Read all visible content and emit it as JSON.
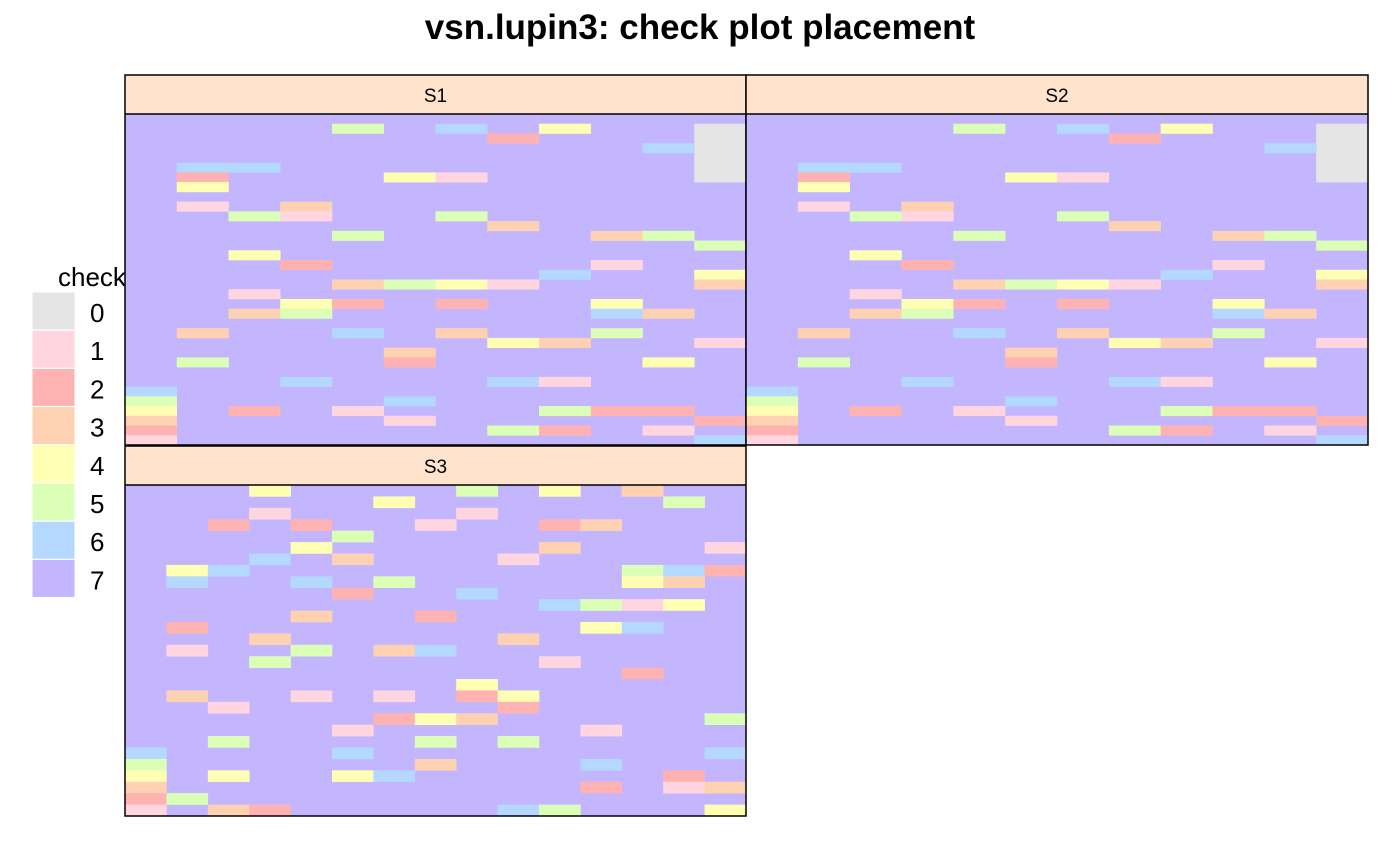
{
  "chart_data": {
    "type": "heatmap",
    "title": "vsn.lupin3: check plot placement",
    "legend": {
      "title": "check",
      "placement": "left",
      "levels": [
        {
          "value": "0",
          "color": "#E5E5E5"
        },
        {
          "value": "1",
          "color": "#FFD6DF"
        },
        {
          "value": "2",
          "color": "#FFB2B2"
        },
        {
          "value": "3",
          "color": "#FFD1B3"
        },
        {
          "value": "4",
          "color": "#FFFFB3"
        },
        {
          "value": "5",
          "color": "#DCFFB8"
        },
        {
          "value": "6",
          "color": "#B4D8FF"
        },
        {
          "value": "7",
          "color": "#C4B5FF"
        }
      ]
    },
    "strip_color": "#FFE3CC",
    "grid_cols": 12,
    "grid_rows": 34,
    "default_value": 7,
    "panels": [
      {
        "name": "S1",
        "cells": [
          [
            11,
            1,
            0
          ],
          [
            11,
            2,
            0
          ],
          [
            11,
            3,
            0
          ],
          [
            11,
            4,
            0
          ],
          [
            11,
            5,
            0
          ],
          [
            11,
            6,
            0
          ],
          [
            4,
            1,
            5
          ],
          [
            6,
            1,
            6
          ],
          [
            8,
            1,
            4
          ],
          [
            7,
            2,
            2
          ],
          [
            10,
            3,
            6
          ],
          [
            1,
            5,
            6
          ],
          [
            2,
            5,
            6
          ],
          [
            1,
            6,
            2
          ],
          [
            5,
            6,
            4
          ],
          [
            6,
            6,
            1
          ],
          [
            1,
            7,
            4
          ],
          [
            1,
            9,
            1
          ],
          [
            3,
            9,
            3
          ],
          [
            2,
            10,
            5
          ],
          [
            3,
            10,
            1
          ],
          [
            6,
            10,
            5
          ],
          [
            7,
            11,
            3
          ],
          [
            4,
            12,
            5
          ],
          [
            9,
            12,
            3
          ],
          [
            10,
            12,
            5
          ],
          [
            11,
            13,
            5
          ],
          [
            2,
            14,
            4
          ],
          [
            3,
            15,
            2
          ],
          [
            9,
            15,
            1
          ],
          [
            8,
            16,
            6
          ],
          [
            11,
            16,
            4
          ],
          [
            4,
            17,
            3
          ],
          [
            5,
            17,
            5
          ],
          [
            6,
            17,
            4
          ],
          [
            7,
            17,
            1
          ],
          [
            11,
            17,
            3
          ],
          [
            2,
            18,
            1
          ],
          [
            3,
            19,
            4
          ],
          [
            4,
            19,
            2
          ],
          [
            6,
            19,
            2
          ],
          [
            9,
            19,
            4
          ],
          [
            2,
            20,
            3
          ],
          [
            3,
            20,
            5
          ],
          [
            9,
            20,
            6
          ],
          [
            10,
            20,
            3
          ],
          [
            1,
            22,
            3
          ],
          [
            4,
            22,
            6
          ],
          [
            6,
            22,
            3
          ],
          [
            9,
            22,
            5
          ],
          [
            7,
            23,
            4
          ],
          [
            8,
            23,
            3
          ],
          [
            11,
            23,
            1
          ],
          [
            5,
            24,
            3
          ],
          [
            1,
            25,
            5
          ],
          [
            5,
            25,
            2
          ],
          [
            10,
            25,
            4
          ],
          [
            3,
            27,
            6
          ],
          [
            7,
            27,
            6
          ],
          [
            8,
            27,
            1
          ],
          [
            0,
            28,
            6
          ],
          [
            0,
            29,
            5
          ],
          [
            5,
            29,
            6
          ],
          [
            0,
            30,
            4
          ],
          [
            2,
            30,
            2
          ],
          [
            4,
            30,
            1
          ],
          [
            8,
            30,
            5
          ],
          [
            9,
            30,
            2
          ],
          [
            10,
            30,
            2
          ],
          [
            0,
            31,
            3
          ],
          [
            5,
            31,
            1
          ],
          [
            11,
            31,
            2
          ],
          [
            0,
            32,
            2
          ],
          [
            7,
            32,
            5
          ],
          [
            8,
            32,
            2
          ],
          [
            10,
            32,
            1
          ],
          [
            0,
            33,
            1
          ],
          [
            11,
            33,
            6
          ]
        ]
      },
      {
        "name": "S2",
        "cells": [
          [
            11,
            1,
            0
          ],
          [
            11,
            2,
            0
          ],
          [
            11,
            3,
            0
          ],
          [
            11,
            4,
            0
          ],
          [
            11,
            5,
            0
          ],
          [
            11,
            6,
            0
          ],
          [
            4,
            1,
            5
          ],
          [
            6,
            1,
            6
          ],
          [
            8,
            1,
            4
          ],
          [
            7,
            2,
            2
          ],
          [
            10,
            3,
            6
          ],
          [
            1,
            5,
            6
          ],
          [
            2,
            5,
            6
          ],
          [
            1,
            6,
            2
          ],
          [
            5,
            6,
            4
          ],
          [
            6,
            6,
            1
          ],
          [
            1,
            7,
            4
          ],
          [
            1,
            9,
            1
          ],
          [
            3,
            9,
            3
          ],
          [
            2,
            10,
            5
          ],
          [
            3,
            10,
            1
          ],
          [
            6,
            10,
            5
          ],
          [
            7,
            11,
            3
          ],
          [
            4,
            12,
            5
          ],
          [
            9,
            12,
            3
          ],
          [
            10,
            12,
            5
          ],
          [
            11,
            13,
            5
          ],
          [
            2,
            14,
            4
          ],
          [
            3,
            15,
            2
          ],
          [
            9,
            15,
            1
          ],
          [
            8,
            16,
            6
          ],
          [
            11,
            16,
            4
          ],
          [
            4,
            17,
            3
          ],
          [
            5,
            17,
            5
          ],
          [
            6,
            17,
            4
          ],
          [
            7,
            17,
            1
          ],
          [
            11,
            17,
            3
          ],
          [
            2,
            18,
            1
          ],
          [
            3,
            19,
            4
          ],
          [
            4,
            19,
            2
          ],
          [
            6,
            19,
            2
          ],
          [
            9,
            19,
            4
          ],
          [
            2,
            20,
            3
          ],
          [
            3,
            20,
            5
          ],
          [
            9,
            20,
            6
          ],
          [
            10,
            20,
            3
          ],
          [
            1,
            22,
            3
          ],
          [
            4,
            22,
            6
          ],
          [
            6,
            22,
            3
          ],
          [
            9,
            22,
            5
          ],
          [
            7,
            23,
            4
          ],
          [
            8,
            23,
            3
          ],
          [
            11,
            23,
            1
          ],
          [
            5,
            24,
            3
          ],
          [
            1,
            25,
            5
          ],
          [
            5,
            25,
            2
          ],
          [
            10,
            25,
            4
          ],
          [
            3,
            27,
            6
          ],
          [
            7,
            27,
            6
          ],
          [
            8,
            27,
            1
          ],
          [
            0,
            28,
            6
          ],
          [
            0,
            29,
            5
          ],
          [
            5,
            29,
            6
          ],
          [
            0,
            30,
            4
          ],
          [
            2,
            30,
            2
          ],
          [
            4,
            30,
            1
          ],
          [
            8,
            30,
            5
          ],
          [
            9,
            30,
            2
          ],
          [
            10,
            30,
            2
          ],
          [
            0,
            31,
            3
          ],
          [
            5,
            31,
            1
          ],
          [
            11,
            31,
            2
          ],
          [
            0,
            32,
            2
          ],
          [
            7,
            32,
            5
          ],
          [
            8,
            32,
            2
          ],
          [
            10,
            32,
            1
          ],
          [
            0,
            33,
            1
          ],
          [
            11,
            33,
            6
          ]
        ]
      },
      {
        "name": "S3",
        "cells": [
          [
            3,
            0,
            4
          ],
          [
            8,
            0,
            5
          ],
          [
            10,
            0,
            4
          ],
          [
            12,
            0,
            3
          ],
          [
            6,
            1,
            4
          ],
          [
            13,
            1,
            5
          ],
          [
            3,
            2,
            1
          ],
          [
            8,
            2,
            1
          ],
          [
            2,
            3,
            2
          ],
          [
            4,
            3,
            2
          ],
          [
            7,
            3,
            1
          ],
          [
            10,
            3,
            2
          ],
          [
            11,
            3,
            3
          ],
          [
            5,
            4,
            5
          ],
          [
            4,
            5,
            4
          ],
          [
            10,
            5,
            3
          ],
          [
            14,
            5,
            1
          ],
          [
            3,
            6,
            6
          ],
          [
            5,
            6,
            3
          ],
          [
            9,
            6,
            1
          ],
          [
            1,
            7,
            4
          ],
          [
            2,
            7,
            6
          ],
          [
            12,
            7,
            5
          ],
          [
            13,
            7,
            6
          ],
          [
            14,
            7,
            2
          ],
          [
            1,
            8,
            6
          ],
          [
            4,
            8,
            6
          ],
          [
            6,
            8,
            5
          ],
          [
            12,
            8,
            4
          ],
          [
            13,
            8,
            3
          ],
          [
            5,
            9,
            2
          ],
          [
            8,
            9,
            6
          ],
          [
            10,
            10,
            6
          ],
          [
            11,
            10,
            5
          ],
          [
            12,
            10,
            1
          ],
          [
            13,
            10,
            4
          ],
          [
            4,
            11,
            3
          ],
          [
            7,
            11,
            2
          ],
          [
            1,
            12,
            2
          ],
          [
            11,
            12,
            4
          ],
          [
            12,
            12,
            6
          ],
          [
            3,
            13,
            3
          ],
          [
            9,
            13,
            3
          ],
          [
            1,
            14,
            1
          ],
          [
            4,
            14,
            5
          ],
          [
            6,
            14,
            3
          ],
          [
            7,
            14,
            6
          ],
          [
            3,
            15,
            5
          ],
          [
            10,
            15,
            1
          ],
          [
            12,
            16,
            2
          ],
          [
            8,
            17,
            4
          ],
          [
            1,
            18,
            3
          ],
          [
            4,
            18,
            1
          ],
          [
            6,
            18,
            1
          ],
          [
            8,
            18,
            2
          ],
          [
            9,
            18,
            4
          ],
          [
            2,
            19,
            1
          ],
          [
            9,
            19,
            2
          ],
          [
            6,
            20,
            2
          ],
          [
            7,
            20,
            4
          ],
          [
            8,
            20,
            3
          ],
          [
            14,
            20,
            5
          ],
          [
            5,
            21,
            1
          ],
          [
            11,
            21,
            1
          ],
          [
            2,
            22,
            5
          ],
          [
            7,
            22,
            5
          ],
          [
            9,
            22,
            5
          ],
          [
            0,
            23,
            6
          ],
          [
            5,
            23,
            6
          ],
          [
            14,
            23,
            6
          ],
          [
            0,
            24,
            5
          ],
          [
            7,
            24,
            3
          ],
          [
            11,
            24,
            6
          ],
          [
            0,
            25,
            4
          ],
          [
            2,
            25,
            4
          ],
          [
            5,
            25,
            4
          ],
          [
            6,
            25,
            6
          ],
          [
            13,
            25,
            2
          ],
          [
            0,
            26,
            3
          ],
          [
            11,
            26,
            2
          ],
          [
            13,
            26,
            1
          ],
          [
            14,
            26,
            3
          ],
          [
            0,
            27,
            2
          ],
          [
            1,
            27,
            5
          ],
          [
            0,
            28,
            1
          ],
          [
            2,
            28,
            3
          ],
          [
            3,
            28,
            2
          ],
          [
            9,
            28,
            6
          ],
          [
            10,
            28,
            5
          ],
          [
            14,
            28,
            4
          ]
        ],
        "grid_cols": 15,
        "grid_rows": 29
      }
    ]
  }
}
